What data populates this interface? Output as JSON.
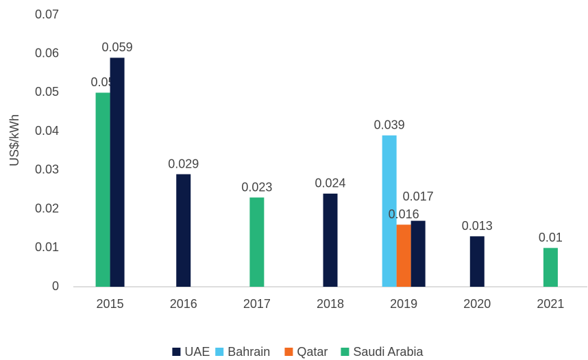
{
  "chart_data": {
    "type": "bar",
    "y_label": "US$/kWh",
    "categories": [
      "2015",
      "2016",
      "2017",
      "2018",
      "2019",
      "2020",
      "2021"
    ],
    "series": [
      {
        "name": "UAE",
        "color": "#0b1a45",
        "values": [
          0.059,
          0.029,
          null,
          0.024,
          0.017,
          0.013,
          null
        ]
      },
      {
        "name": "Bahrain",
        "color": "#4fc6ef",
        "values": [
          null,
          null,
          null,
          null,
          0.039,
          null,
          null
        ]
      },
      {
        "name": "Qatar",
        "color": "#f26b21",
        "values": [
          null,
          null,
          null,
          null,
          0.016,
          null,
          null
        ]
      },
      {
        "name": "Saudi Arabia",
        "color": "#27b57a",
        "values": [
          0.05,
          null,
          0.023,
          null,
          null,
          null,
          0.01
        ]
      }
    ],
    "ylim": [
      0,
      0.07
    ],
    "yticks": [
      0,
      0.01,
      0.02,
      0.03,
      0.04,
      0.05,
      0.06,
      0.07
    ],
    "grid": false,
    "legend": "bottom"
  }
}
